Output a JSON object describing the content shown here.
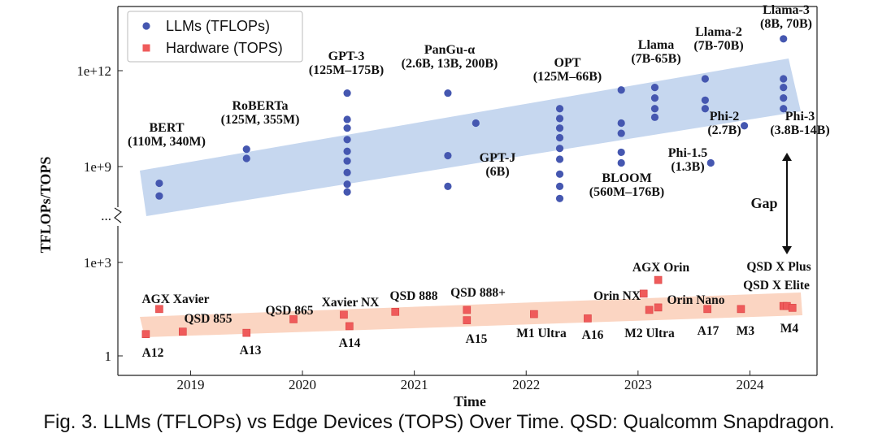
{
  "caption": "Fig. 3.  LLMs (TFLOPs) vs Edge Devices (TOPS) Over Time. QSD: Qualcomm Snapdragon.",
  "chart_data": {
    "type": "scatter",
    "xlabel": "Time",
    "ylabel": "TFLOPs/TOPS",
    "xlim": [
      2018.35,
      2024.6
    ],
    "x_ticks": [
      2019,
      2020,
      2021,
      2022,
      2023,
      2024
    ],
    "x_tick_labels": [
      "2019",
      "2020",
      "2021",
      "2022",
      "2023",
      "2024"
    ],
    "y_scale": "log (broken axis)",
    "y_ticks": [
      {
        "label": "1",
        "value": 1
      },
      {
        "label": "1e+3",
        "value": 1000
      },
      {
        "label": "...",
        "value": null
      },
      {
        "label": "1e+9",
        "value": 1000000000
      },
      {
        "label": "1e+12",
        "value": 1000000000000
      }
    ],
    "legend": {
      "position": "top-left",
      "entries": [
        {
          "label": "LLMs (TFLOPs)",
          "marker": "circle",
          "color": "#4557b0"
        },
        {
          "label": "Hardware (TOPS)",
          "marker": "square",
          "color": "#ef5b5b"
        }
      ]
    },
    "colors": {
      "llm": "#4557b0",
      "hardware": "#ef5b5b",
      "llm_band": "#c6d7ef",
      "hw_band": "#fbd5c2"
    },
    "series": [
      {
        "name": "LLMs (TFLOPs)",
        "points": [
          {
            "x": 2018.72,
            "y": 300000000.0
          },
          {
            "x": 2018.72,
            "y": 120000000.0
          },
          {
            "x": 2019.5,
            "y": 3500000000.0
          },
          {
            "x": 2019.5,
            "y": 1800000000.0
          },
          {
            "x": 2020.4,
            "y": 200000000000.0
          },
          {
            "x": 2020.4,
            "y": 30000000000.0
          },
          {
            "x": 2020.4,
            "y": 16000000000.0
          },
          {
            "x": 2020.4,
            "y": 7000000000.0
          },
          {
            "x": 2020.4,
            "y": 3000000000.0
          },
          {
            "x": 2020.4,
            "y": 1500000000.0
          },
          {
            "x": 2020.4,
            "y": 650000000.0
          },
          {
            "x": 2020.4,
            "y": 280000000.0
          },
          {
            "x": 2020.4,
            "y": 160000000.0
          },
          {
            "x": 2021.3,
            "y": 200000000000.0
          },
          {
            "x": 2021.3,
            "y": 2200000000.0
          },
          {
            "x": 2021.3,
            "y": 240000000.0
          },
          {
            "x": 2021.55,
            "y": 23000000000.0
          },
          {
            "x": 2022.3,
            "y": 65000000000.0
          },
          {
            "x": 2022.3,
            "y": 32000000000.0
          },
          {
            "x": 2022.3,
            "y": 16000000000.0
          },
          {
            "x": 2022.3,
            "y": 8000000000.0
          },
          {
            "x": 2022.3,
            "y": 3700000000.0
          },
          {
            "x": 2022.3,
            "y": 1700000000.0
          },
          {
            "x": 2022.3,
            "y": 580000000.0
          },
          {
            "x": 2022.3,
            "y": 240000000.0
          },
          {
            "x": 2022.3,
            "y": 100000000.0
          },
          {
            "x": 2022.85,
            "y": 250000000000.0
          },
          {
            "x": 2022.85,
            "y": 23000000000.0
          },
          {
            "x": 2022.85,
            "y": 11000000000.0
          },
          {
            "x": 2022.85,
            "y": 2800000000.0
          },
          {
            "x": 2022.85,
            "y": 1300000000.0
          },
          {
            "x": 2023.15,
            "y": 300000000000.0
          },
          {
            "x": 2023.15,
            "y": 140000000000.0
          },
          {
            "x": 2023.15,
            "y": 65000000000.0
          },
          {
            "x": 2023.15,
            "y": 35000000000.0
          },
          {
            "x": 2023.6,
            "y": 560000000000.0
          },
          {
            "x": 2023.6,
            "y": 120000000000.0
          },
          {
            "x": 2023.6,
            "y": 65000000000.0
          },
          {
            "x": 2023.65,
            "y": 1300000000.0
          },
          {
            "x": 2023.95,
            "y": 19000000000.0
          },
          {
            "x": 2024.3,
            "y": 10000000000000.0
          },
          {
            "x": 2024.3,
            "y": 560000000000.0
          },
          {
            "x": 2024.3,
            "y": 300000000000.0
          },
          {
            "x": 2024.3,
            "y": 140000000000.0
          },
          {
            "x": 2024.3,
            "y": 65000000000.0
          }
        ]
      },
      {
        "name": "Hardware (TOPS)",
        "points": [
          {
            "x": 2018.6,
            "y": 5
          },
          {
            "x": 2018.72,
            "y": 32
          },
          {
            "x": 2018.93,
            "y": 6
          },
          {
            "x": 2019.5,
            "y": 5.5
          },
          {
            "x": 2019.92,
            "y": 15
          },
          {
            "x": 2020.37,
            "y": 21
          },
          {
            "x": 2020.42,
            "y": 9
          },
          {
            "x": 2020.83,
            "y": 26
          },
          {
            "x": 2021.47,
            "y": 30
          },
          {
            "x": 2021.47,
            "y": 14
          },
          {
            "x": 2022.07,
            "y": 22
          },
          {
            "x": 2022.55,
            "y": 16
          },
          {
            "x": 2023.05,
            "y": 100
          },
          {
            "x": 2023.1,
            "y": 30
          },
          {
            "x": 2023.18,
            "y": 36
          },
          {
            "x": 2023.18,
            "y": 275
          },
          {
            "x": 2023.62,
            "y": 32
          },
          {
            "x": 2023.92,
            "y": 32
          },
          {
            "x": 2024.3,
            "y": 40
          },
          {
            "x": 2024.33,
            "y": 40
          },
          {
            "x": 2024.38,
            "y": 35
          }
        ]
      }
    ],
    "annotations": [
      {
        "lines": [
          "BERT",
          "(110M, 340M)"
        ],
        "series": "LLMs (TFLOPs)"
      },
      {
        "lines": [
          "RoBERTa",
          "(125M, 355M)"
        ],
        "series": "LLMs (TFLOPs)"
      },
      {
        "lines": [
          "GPT-3",
          "(125M–175B)"
        ],
        "series": "LLMs (TFLOPs)"
      },
      {
        "lines": [
          "PanGu-α",
          "(2.6B, 13B, 200B)"
        ],
        "series": "LLMs (TFLOPs)"
      },
      {
        "lines": [
          "GPT-J",
          "(6B)"
        ],
        "series": "LLMs (TFLOPs)"
      },
      {
        "lines": [
          "OPT",
          "(125M–66B)"
        ],
        "series": "LLMs (TFLOPs)"
      },
      {
        "lines": [
          "BLOOM",
          "(560M–176B)"
        ],
        "series": "LLMs (TFLOPs)"
      },
      {
        "lines": [
          "Llama",
          "(7B-65B)"
        ],
        "series": "LLMs (TFLOPs)"
      },
      {
        "lines": [
          "Llama-2",
          "(7B-70B)"
        ],
        "series": "LLMs (TFLOPs)"
      },
      {
        "lines": [
          "Llama-3",
          "(8B, 70B)"
        ],
        "series": "LLMs (TFLOPs)"
      },
      {
        "lines": [
          "Phi-1.5",
          "(1.3B)"
        ],
        "series": "LLMs (TFLOPs)"
      },
      {
        "lines": [
          "Phi-2",
          "(2.7B)"
        ],
        "series": "LLMs (TFLOPs)"
      },
      {
        "lines": [
          "Phi-3",
          "(3.8B-14B)"
        ],
        "series": "LLMs (TFLOPs)"
      },
      {
        "lines": [
          "Gap"
        ],
        "series": ""
      },
      {
        "lines": [
          "AGX Xavier"
        ],
        "series": "Hardware (TOPS)"
      },
      {
        "lines": [
          "QSD 855"
        ],
        "series": "Hardware (TOPS)"
      },
      {
        "lines": [
          "A12"
        ],
        "series": "Hardware (TOPS)"
      },
      {
        "lines": [
          "A13"
        ],
        "series": "Hardware (TOPS)"
      },
      {
        "lines": [
          "QSD 865"
        ],
        "series": "Hardware (TOPS)"
      },
      {
        "lines": [
          "Xavier NX"
        ],
        "series": "Hardware (TOPS)"
      },
      {
        "lines": [
          "A14"
        ],
        "series": "Hardware (TOPS)"
      },
      {
        "lines": [
          "QSD 888"
        ],
        "series": "Hardware (TOPS)"
      },
      {
        "lines": [
          "QSD 888+"
        ],
        "series": "Hardware (TOPS)"
      },
      {
        "lines": [
          "A15"
        ],
        "series": "Hardware (TOPS)"
      },
      {
        "lines": [
          "M1 Ultra"
        ],
        "series": "Hardware (TOPS)"
      },
      {
        "lines": [
          "A16"
        ],
        "series": "Hardware (TOPS)"
      },
      {
        "lines": [
          "AGX Orin"
        ],
        "series": "Hardware (TOPS)"
      },
      {
        "lines": [
          "Orin NX"
        ],
        "series": "Hardware (TOPS)"
      },
      {
        "lines": [
          "Orin Nano"
        ],
        "series": "Hardware (TOPS)"
      },
      {
        "lines": [
          "M2 Ultra"
        ],
        "series": "Hardware (TOPS)"
      },
      {
        "lines": [
          "A17"
        ],
        "series": "Hardware (TOPS)"
      },
      {
        "lines": [
          "M3"
        ],
        "series": "Hardware (TOPS)"
      },
      {
        "lines": [
          "QSD X Plus"
        ],
        "series": "Hardware (TOPS)"
      },
      {
        "lines": [
          "QSD X Elite"
        ],
        "series": "Hardware (TOPS)"
      },
      {
        "lines": [
          "M4"
        ],
        "series": "Hardware (TOPS)"
      }
    ]
  }
}
